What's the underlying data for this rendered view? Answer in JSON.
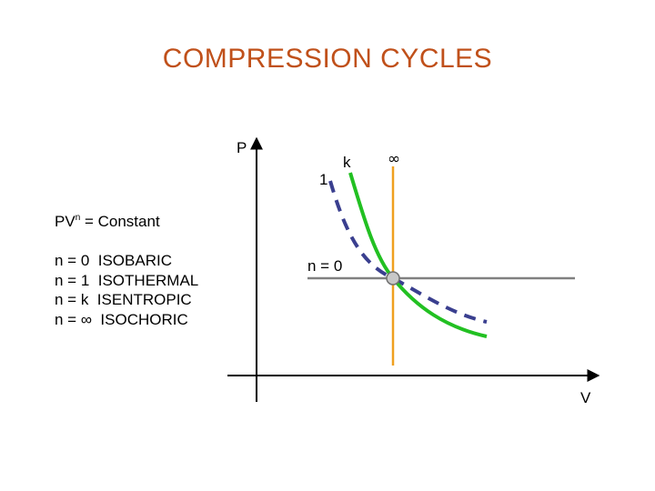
{
  "slide": {
    "title": "COMPRESSION CYCLES"
  },
  "equation": {
    "base": "PV",
    "exponent": "n",
    "rest": " = Constant"
  },
  "legend": [
    {
      "n": "n = 0",
      "process": "ISOBARIC"
    },
    {
      "n": "n = 1",
      "process": "ISOTHERMAL"
    },
    {
      "n": "n = k",
      "process": "ISENTROPIC"
    },
    {
      "n": "n = ∞",
      "process": "ISOCHORIC"
    }
  ],
  "diagram": {
    "y_axis_label": "P",
    "x_axis_label": "V",
    "curve_labels": {
      "isothermal": "1",
      "isentropic": "k",
      "isochoric": "∞",
      "isobaric": "n = 0"
    },
    "colors": {
      "isobaric": "#808080",
      "isothermal": "#3a3f8f",
      "isentropic": "#22c022",
      "isochoric": "#f0a020",
      "axes": "#000000",
      "state_point": "#c8c8c8"
    }
  }
}
